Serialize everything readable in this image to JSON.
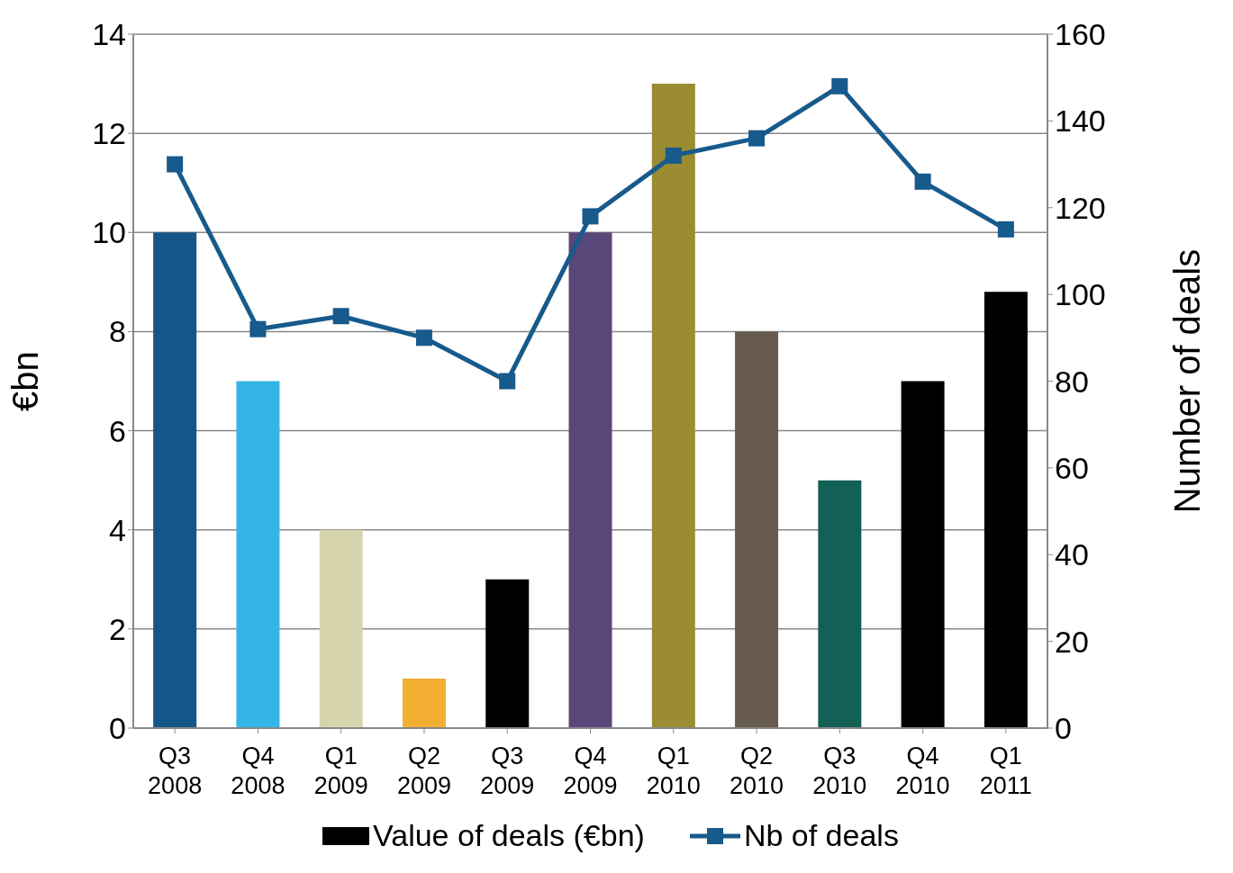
{
  "chart_data": {
    "type": "bar",
    "ylabel": "€bn",
    "y2label": "Number of deals",
    "categories": [
      "Q3 2008",
      "Q4 2008",
      "Q1 2009",
      "Q2 2009",
      "Q3 2009",
      "Q4 2009",
      "Q1 2010",
      "Q2 2010",
      "Q3 2010",
      "Q4 2010",
      "Q1 2011"
    ],
    "series": [
      {
        "name": "Value of deals (€bn)",
        "color": "#000000",
        "colors": [
          "#145687",
          "#33b5e5",
          "#d6d5ae",
          "#f2af32",
          "#000000",
          "#5a4779",
          "#9b8c31",
          "#675a4f",
          "#126056",
          "#000000",
          "#000000"
        ],
        "values": [
          10,
          7,
          4,
          1,
          3,
          10,
          13,
          8,
          5,
          7,
          8.8
        ]
      },
      {
        "name": "Nb of deals",
        "type": "line",
        "axis": "y2",
        "color": "#175a8c",
        "values": [
          130,
          92,
          95,
          90,
          80,
          118,
          132,
          136,
          148,
          126,
          115
        ]
      }
    ],
    "ylim": [
      0,
      14
    ],
    "yticks": [
      0,
      2,
      4,
      6,
      8,
      10,
      12,
      14
    ],
    "y2lim": [
      0,
      160
    ],
    "y2ticks": [
      0,
      20,
      40,
      60,
      80,
      100,
      120,
      140,
      160
    ],
    "grid": "y",
    "legend": "bottom",
    "marker": "square",
    "line_style": "solid"
  }
}
